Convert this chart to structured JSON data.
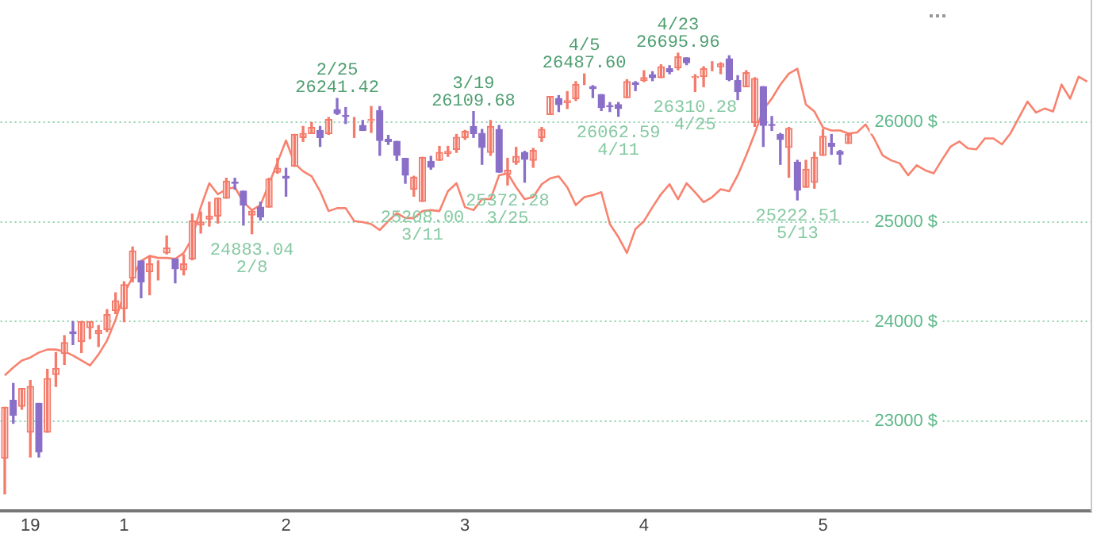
{
  "chart_data": {
    "type": "candlestick",
    "categories": [
      null,
      null,
      null,
      "19",
      null,
      null,
      null,
      null,
      null,
      null,
      null,
      null,
      null,
      null,
      "1",
      null,
      null,
      null,
      null,
      null,
      null,
      null,
      null,
      null,
      null,
      null,
      null,
      null,
      null,
      null,
      null,
      null,
      null,
      "2",
      null,
      null,
      null,
      null,
      null,
      null,
      null,
      null,
      null,
      null,
      null,
      null,
      null,
      null,
      null,
      null,
      null,
      null,
      null,
      null,
      "3",
      null,
      null,
      null,
      null,
      null,
      null,
      null,
      null,
      null,
      null,
      null,
      null,
      null,
      null,
      null,
      null,
      null,
      null,
      null,
      null,
      "4",
      null,
      null,
      null,
      null,
      null,
      null,
      null,
      null,
      null,
      null,
      null,
      null,
      null,
      null,
      null,
      null,
      null,
      null,
      null,
      null,
      "5",
      null,
      null,
      null,
      null,
      null,
      null,
      null,
      null,
      null,
      null,
      null,
      null,
      null,
      null,
      null,
      null,
      null,
      null,
      null,
      null,
      null,
      null,
      null,
      null,
      null,
      null,
      null,
      null,
      null,
      null,
      null
    ],
    "ohlc": [
      [
        22630,
        23140,
        22270,
        23140
      ],
      [
        23210,
        23380,
        22980,
        23060
      ],
      [
        23150,
        23330,
        23120,
        23330
      ],
      [
        22890,
        23410,
        22640,
        23350
      ],
      [
        23180,
        23180,
        22640,
        22690
      ],
      [
        22890,
        23520,
        22890,
        23430
      ],
      [
        23470,
        23690,
        23350,
        23530
      ],
      [
        23680,
        23860,
        23570,
        23790
      ],
      [
        23900,
        24000,
        23770,
        23880
      ],
      [
        23800,
        24000,
        23690,
        24000
      ],
      [
        23940,
        24000,
        23830,
        24000
      ],
      [
        23880,
        23960,
        23750,
        23910
      ],
      [
        23920,
        24120,
        23900,
        24070
      ],
      [
        24110,
        24290,
        24080,
        24210
      ],
      [
        24130,
        24400,
        24000,
        24370
      ],
      [
        24440,
        24750,
        24400,
        24710
      ],
      [
        24610,
        24610,
        24240,
        24400
      ],
      [
        24500,
        24660,
        24270,
        24580
      ],
      [
        24550,
        24610,
        24420,
        24550
      ],
      [
        24690,
        24860,
        24680,
        24740
      ],
      [
        24630,
        24630,
        24390,
        24530
      ],
      [
        24520,
        24670,
        24470,
        24580
      ],
      [
        24630,
        25080,
        24620,
        25010
      ],
      [
        24970,
        25100,
        24890,
        25000
      ],
      [
        25030,
        25200,
        24960,
        25060
      ],
      [
        25060,
        25240,
        24990,
        25240
      ],
      [
        25240,
        25440,
        25240,
        25410
      ],
      [
        25400,
        25440,
        25330,
        25390
      ],
      [
        25310,
        25310,
        24970,
        25170
      ],
      [
        25070,
        25110,
        24883.04,
        25110
      ],
      [
        25150,
        25200,
        25020,
        25050
      ],
      [
        25150,
        25440,
        25150,
        25430
      ],
      [
        25500,
        25640,
        25490,
        25540
      ],
      [
        25460,
        25540,
        25260,
        25440
      ],
      [
        25560,
        25880,
        25560,
        25880
      ],
      [
        25850,
        25960,
        25810,
        25890
      ],
      [
        25890,
        26000,
        25890,
        25950
      ],
      [
        25920,
        25960,
        25760,
        25850
      ],
      [
        25890,
        26050,
        25880,
        26030
      ],
      [
        26130,
        26241.42,
        26080,
        26090
      ],
      [
        26070,
        26150,
        25990,
        26060
      ],
      [
        25990,
        26050,
        25850,
        25990
      ],
      [
        25970,
        26020,
        25920,
        25920
      ],
      [
        26020,
        26160,
        25900,
        26030
      ],
      [
        26120,
        26160,
        25670,
        25820
      ],
      [
        25830,
        25870,
        25780,
        25810
      ],
      [
        25810,
        25810,
        25620,
        25670
      ],
      [
        25640,
        25640,
        25390,
        25470
      ],
      [
        25330,
        25460,
        25260,
        25450
      ],
      [
        25208.0,
        25650,
        25208.0,
        25650
      ],
      [
        25610,
        25660,
        25530,
        25550
      ],
      [
        25620,
        25760,
        25620,
        25700
      ],
      [
        25690,
        25760,
        25660,
        25710
      ],
      [
        25730,
        25880,
        25700,
        25850
      ],
      [
        25850,
        25920,
        25830,
        25910
      ],
      [
        25960,
        26109.68,
        25850,
        25890
      ],
      [
        25890,
        25930,
        25580,
        25750
      ],
      [
        25700,
        26020,
        25670,
        25960
      ],
      [
        25930,
        25970,
        25500,
        25500
      ],
      [
        25480,
        25640,
        25372.28,
        25520
      ],
      [
        25600,
        25750,
        25580,
        25660
      ],
      [
        25700,
        25710,
        25400,
        25630
      ],
      [
        25620,
        25740,
        25550,
        25720
      ],
      [
        25850,
        25950,
        25810,
        25930
      ],
      [
        26080,
        26260,
        26080,
        26260
      ],
      [
        26240,
        26270,
        26110,
        26180
      ],
      [
        26200,
        26310,
        26140,
        26220
      ],
      [
        26240,
        26410,
        26220,
        26380
      ],
      [
        26420,
        26487.6,
        26380,
        26420
      ],
      [
        26360,
        26370,
        26250,
        26340
      ],
      [
        26280,
        26280,
        26120,
        26150
      ],
      [
        26170,
        26200,
        26110,
        26160
      ],
      [
        26180,
        26200,
        26062.59,
        26140
      ],
      [
        26250,
        26430,
        26250,
        26410
      ],
      [
        26400,
        26410,
        26320,
        26380
      ],
      [
        26420,
        26520,
        26410,
        26450
      ],
      [
        26480,
        26510,
        26420,
        26450
      ],
      [
        26450,
        26580,
        26450,
        26560
      ],
      [
        26540,
        26570,
        26490,
        26510
      ],
      [
        26550,
        26695.96,
        26530,
        26660
      ],
      [
        26650,
        26650,
        26580,
        26600
      ],
      [
        26450,
        26480,
        26310.28,
        26460
      ],
      [
        26460,
        26560,
        26360,
        26540
      ],
      [
        26550,
        26610,
        26520,
        26550
      ],
      [
        26560,
        26600,
        26490,
        26590
      ],
      [
        26640,
        26670,
        26420,
        26430
      ],
      [
        26420,
        26470,
        26230,
        26310
      ],
      [
        26360,
        26520,
        26360,
        26500
      ],
      [
        26000,
        26450,
        25960,
        26440
      ],
      [
        26360,
        26360,
        25760,
        25970
      ],
      [
        25980,
        26060,
        25920,
        25970
      ],
      [
        25880,
        25890,
        25580,
        25830
      ],
      [
        25750,
        25950,
        25450,
        25940
      ],
      [
        25600,
        25620,
        25222.51,
        25320
      ],
      [
        25350,
        25620,
        25350,
        25530
      ],
      [
        25400,
        25700,
        25340,
        25650
      ],
      [
        25670,
        25930,
        25670,
        25860
      ],
      [
        25790,
        25880,
        25680,
        25760
      ],
      [
        25710,
        25720,
        25580,
        25680
      ],
      [
        25790,
        25890,
        25790,
        25880
      ],
      null,
      null,
      null,
      null,
      null,
      null,
      null,
      null,
      null,
      null,
      null,
      null,
      null,
      null,
      null,
      null,
      null,
      null,
      null,
      null,
      null,
      null,
      null,
      null,
      null,
      null,
      null,
      null
    ],
    "colors": [
      "#f47a6a",
      "#8a6fc9",
      "#f47a6a",
      "#f47a6a",
      "#8a6fc9",
      "#f47a6a",
      "#f47a6a",
      "#f47a6a",
      "#8a6fc9",
      "#f47a6a",
      "#f47a6a",
      "#f47a6a",
      "#f47a6a",
      "#f47a6a",
      "#f47a6a",
      "#f47a6a",
      "#8a6fc9",
      "#f47a6a",
      "#f47a6a",
      "#f47a6a",
      "#8a6fc9",
      "#f47a6a",
      "#f47a6a",
      "#f47a6a",
      "#f47a6a",
      "#f47a6a",
      "#f47a6a",
      "#8a6fc9",
      "#8a6fc9",
      "#f47a6a",
      "#8a6fc9",
      "#f47a6a",
      "#f47a6a",
      "#8a6fc9",
      "#f47a6a",
      "#f47a6a",
      "#f47a6a",
      "#8a6fc9",
      "#f47a6a",
      "#8a6fc9",
      "#8a6fc9",
      "#f47a6a",
      "#8a6fc9",
      "#f47a6a",
      "#8a6fc9",
      "#8a6fc9",
      "#8a6fc9",
      "#8a6fc9",
      "#f47a6a",
      "#f47a6a",
      "#8a6fc9",
      "#f47a6a",
      "#f47a6a",
      "#f47a6a",
      "#f47a6a",
      "#8a6fc9",
      "#8a6fc9",
      "#f47a6a",
      "#8a6fc9",
      "#f47a6a",
      "#f47a6a",
      "#8a6fc9",
      "#f47a6a",
      "#f47a6a",
      "#f47a6a",
      "#8a6fc9",
      "#f47a6a",
      "#f47a6a",
      "#f47a6a",
      "#8a6fc9",
      "#8a6fc9",
      "#8a6fc9",
      "#8a6fc9",
      "#f47a6a",
      "#8a6fc9",
      "#f47a6a",
      "#8a6fc9",
      "#f47a6a",
      "#8a6fc9",
      "#f47a6a",
      "#8a6fc9",
      "#f47a6a",
      "#f47a6a",
      "#f47a6a",
      "#f47a6a",
      "#8a6fc9",
      "#8a6fc9",
      "#f47a6a",
      "#f47a6a",
      "#8a6fc9",
      "#8a6fc9",
      "#8a6fc9",
      "#f47a6a",
      "#8a6fc9",
      "#f47a6a",
      "#f47a6a",
      "#f47a6a",
      "#8a6fc9",
      "#8a6fc9",
      "#f47a6a",
      null,
      null,
      null,
      null,
      null,
      null,
      null,
      null,
      null,
      null,
      null,
      null,
      null,
      null,
      null,
      null,
      null,
      null,
      null,
      null,
      null,
      null,
      null,
      null,
      null,
      null,
      null,
      null
    ],
    "series": [
      {
        "type": "line",
        "color": "#f7836f",
        "values": [
          23460,
          23540,
          23610,
          23640,
          23690,
          23720,
          23720,
          23700,
          23660,
          23610,
          23560,
          23670,
          23810,
          24020,
          24280,
          24450,
          24610,
          24660,
          24640,
          24640,
          24630,
          24690,
          24840,
          25150,
          25390,
          25280,
          25330,
          25350,
          25200,
          25120,
          25170,
          25380,
          25600,
          25820,
          25590,
          25510,
          25460,
          25310,
          25110,
          25140,
          25140,
          25010,
          25000,
          24980,
          24920,
          25010,
          25090,
          25040,
          25040,
          25110,
          25120,
          25110,
          25310,
          25390,
          25150,
          25120,
          25230,
          25230,
          25470,
          25490,
          25350,
          25230,
          25250,
          25380,
          25440,
          25460,
          25350,
          25170,
          25250,
          25270,
          25300,
          24980,
          24850,
          24690,
          24930,
          25010,
          25150,
          25280,
          25380,
          25230,
          25390,
          25300,
          25200,
          25250,
          25330,
          25310,
          25470,
          25670,
          25890,
          26130,
          26240,
          26380,
          26490,
          26540,
          26180,
          26110,
          25950,
          25920,
          25920,
          25890,
          25900,
          25980,
          25840,
          25670,
          25620,
          25590,
          25470,
          25570,
          25520,
          25490,
          25630,
          25760,
          25810,
          25740,
          25730,
          25840,
          25840,
          25780,
          25890,
          26050,
          26210,
          26100,
          26140,
          26110,
          26380,
          26240,
          26460,
          26410
        ]
      }
    ],
    "ylim": [
      22100,
      27230
    ],
    "yticks": [
      {
        "value": 23000,
        "label": "23000 $"
      },
      {
        "value": 24000,
        "label": "24000 $"
      },
      {
        "value": 25000,
        "label": "25000 $"
      },
      {
        "value": 26000,
        "label": "26000 $"
      }
    ],
    "grid": "y",
    "legend": false,
    "marker": "none",
    "annotations": [
      {
        "text": "2/25\n26241.42",
        "y": 26241.42
      },
      {
        "text": "24883.04\n2/8",
        "y": 24883.04
      },
      {
        "text": "3/19\n26109.68",
        "y": 26109.68
      },
      {
        "text": "25208.00\n3/11",
        "y": 25208.0
      },
      {
        "text": "25372.28\n3/25",
        "y": 25372.28
      },
      {
        "text": "4/5\n26487.60",
        "y": 26487.6
      },
      {
        "text": "26062.59\n4/11",
        "y": 26062.59
      },
      {
        "text": "4/23\n26695.96",
        "y": 26695.96
      },
      {
        "text": "26310.28\n4/25",
        "y": 26310.28
      },
      {
        "text": "25222.51\n5/13",
        "y": 25222.51
      }
    ]
  }
}
